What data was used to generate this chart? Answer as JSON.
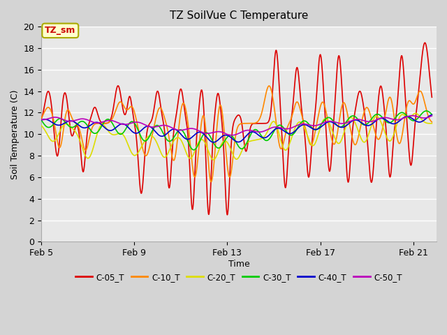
{
  "title": "TZ SoilVue C Temperature",
  "xlabel": "Time",
  "ylabel": "Soil Temperature (C)",
  "ylim": [
    0,
    20
  ],
  "xlim": [
    5,
    22
  ],
  "xtick_days": [
    5,
    9,
    13,
    17,
    21
  ],
  "xtick_labels": [
    "Feb 5",
    "Feb 9",
    "Feb 13",
    "Feb 17",
    "Feb 21"
  ],
  "ytick_vals": [
    0,
    2,
    4,
    6,
    8,
    10,
    12,
    14,
    16,
    18,
    20
  ],
  "fig_bg_color": "#d4d4d4",
  "plot_bg_color": "#e8e8e8",
  "grid_color": "#ffffff",
  "legend_labels": [
    "C-05_T",
    "C-10_T",
    "C-20_T",
    "C-30_T",
    "C-40_T",
    "C-50_T"
  ],
  "line_colors": [
    "#dd0000",
    "#ff8800",
    "#dddd00",
    "#00cc00",
    "#0000cc",
    "#bb00bb"
  ],
  "line_width": 1.2,
  "annotation_text": "TZ_sm",
  "annotation_color": "#cc0000",
  "annotation_bg": "#ffffcc",
  "annotation_border": "#aaaa00"
}
